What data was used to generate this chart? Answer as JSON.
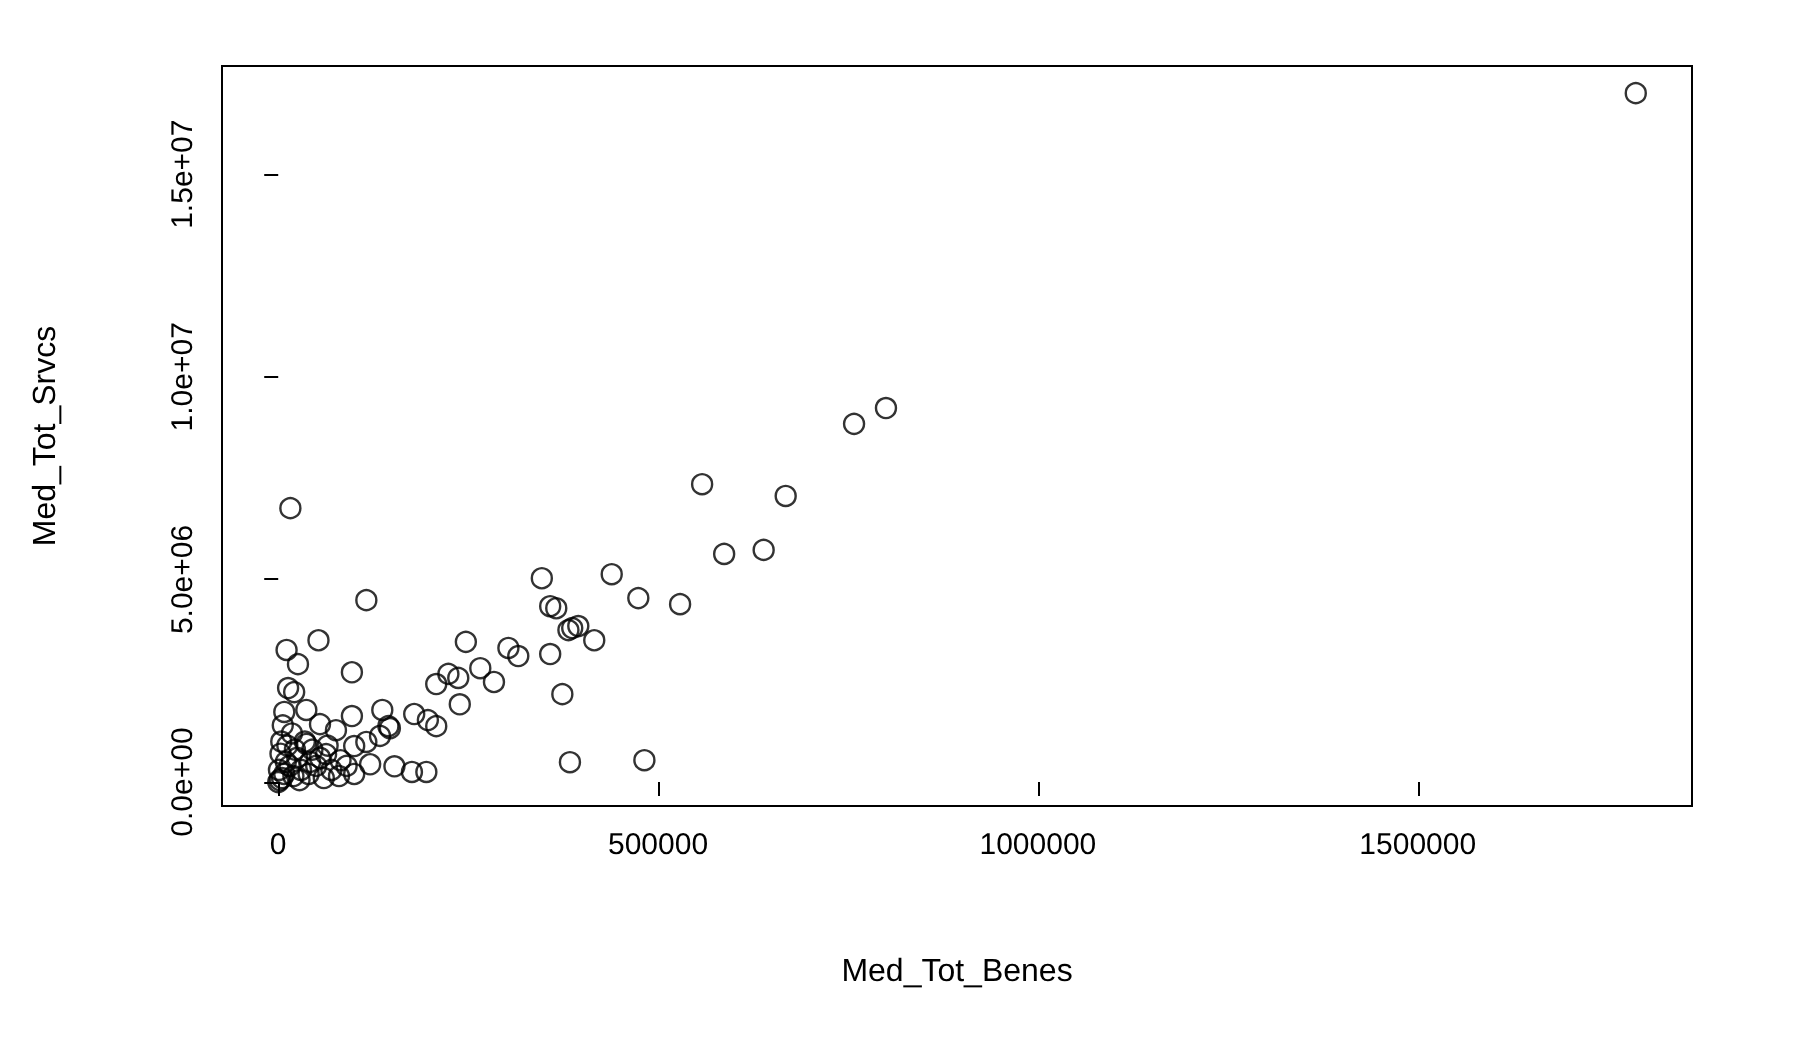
{
  "chart_data": {
    "type": "scatter",
    "xlabel": "Med_Tot_Benes",
    "ylabel": "Med_Tot_Srvcs",
    "marker": "circle",
    "grid": false,
    "xlim": [
      -74000,
      1861000
    ],
    "ylim": [
      -590000,
      17670000
    ],
    "xticks": [
      0,
      500000,
      1000000,
      1500000
    ],
    "yticks": [
      {
        "value": 0,
        "label": "0.0e+00"
      },
      {
        "value": 5000000,
        "label": "5.0e+06"
      },
      {
        "value": 10000000,
        "label": "1.0e+07"
      },
      {
        "value": 15000000,
        "label": "1.5e+07"
      }
    ],
    "series": [
      {
        "color": "#000000",
        "x": [
          1787000,
          800000,
          758000,
          558000,
          668000,
          639000,
          587000,
          347000,
          439000,
          474000,
          529000,
          358000,
          366000,
          382000,
          387000,
          395000,
          416000,
          358000,
          374000,
          384000,
          482000,
          247000,
          303000,
          316000,
          266000,
          284000,
          224000,
          237000,
          208000,
          239000,
          137000,
          179000,
          197000,
          208000,
          116000,
          176000,
          195000,
          145000,
          153000,
          16000,
          53000,
          11000,
          26000,
          97000,
          13000,
          21000,
          97000,
          8000,
          37000,
          55000,
          76000,
          147000,
          134000,
          116000,
          100000,
          100000,
          121000,
          82000,
          63000,
          37000,
          0,
          2000,
          5000,
          1000,
          8000,
          10000,
          3000,
          15000,
          20000,
          25000,
          30000,
          12000,
          40000,
          45000,
          50000,
          60000,
          35000,
          18000,
          6000,
          55000,
          70000,
          65000,
          28000,
          42000,
          4000,
          22000,
          80000,
          90000
        ],
        "values": [
          17000000,
          9230000,
          8840000,
          7350000,
          7060000,
          5730000,
          5630000,
          5030000,
          5130000,
          4540000,
          4390000,
          4340000,
          4290000,
          3750000,
          3800000,
          3850000,
          3500000,
          3160000,
          2170000,
          490000,
          540000,
          3460000,
          3310000,
          3110000,
          2810000,
          2470000,
          2670000,
          2570000,
          2420000,
          1920000,
          1780000,
          1680000,
          1530000,
          1380000,
          4490000,
          250000,
          250000,
          1380000,
          390000,
          6760000,
          3500000,
          3260000,
          2910000,
          2710000,
          2320000,
          2220000,
          1630000,
          1730000,
          1780000,
          1430000,
          1280000,
          1330000,
          1140000,
          990000,
          890000,
          200000,
          440000,
          540000,
          690000,
          940000,
          0,
          50000,
          100000,
          300000,
          200000,
          500000,
          700000,
          400000,
          150000,
          600000,
          300000,
          900000,
          200000,
          800000,
          400000,
          100000,
          1000000,
          1200000,
          1400000,
          600000,
          300000,
          900000,
          50000,
          500000,
          1000000,
          800000,
          150000,
          400000
        ]
      }
    ]
  }
}
